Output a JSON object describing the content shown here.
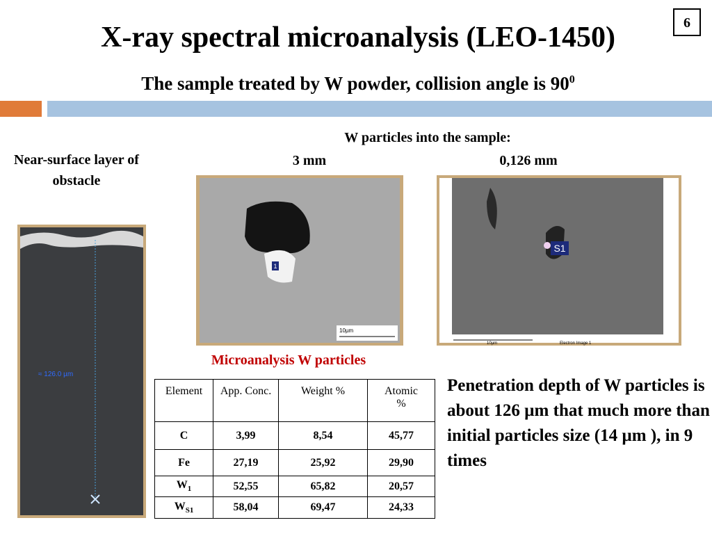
{
  "header": {
    "title": "X-ray spectral microanalysis (LEO-1450)",
    "page_number": "6",
    "subtitle": {
      "text": "The sample treated by W powder, collision angle is 90",
      "sup": "0"
    }
  },
  "left": {
    "caption": "Near-surface layer of obstacle",
    "image_label": "≈ 126.0 µm"
  },
  "images": {
    "heading": "W particles into the sample:",
    "left_label": "3 mm",
    "right_label": "0,126 mm",
    "left_marker": "1",
    "left_scale": "10µm",
    "right_marker": "S1",
    "right_scale": "10µm",
    "right_caption": "Electron Image 1"
  },
  "table": {
    "title": "Microanalysis W particles",
    "headers": [
      "Element",
      "App. Conc.",
      "Weight %",
      "Atomic %"
    ],
    "rows": [
      [
        "C",
        "3,99",
        "8,54",
        "45,77"
      ],
      [
        "Fe",
        "27,19",
        "25,92",
        "29,90"
      ],
      [
        {
          "text": "W",
          "sub": "1"
        },
        "52,55",
        "65,82",
        "20,57"
      ],
      [
        {
          "text": "W",
          "sub": "S1"
        },
        "58,04",
        "69,47",
        "24,33"
      ]
    ]
  },
  "note": "Penetration depth of  W particles is about  126 µm that much more than initial particles size (14 µm ), in 9 times"
}
